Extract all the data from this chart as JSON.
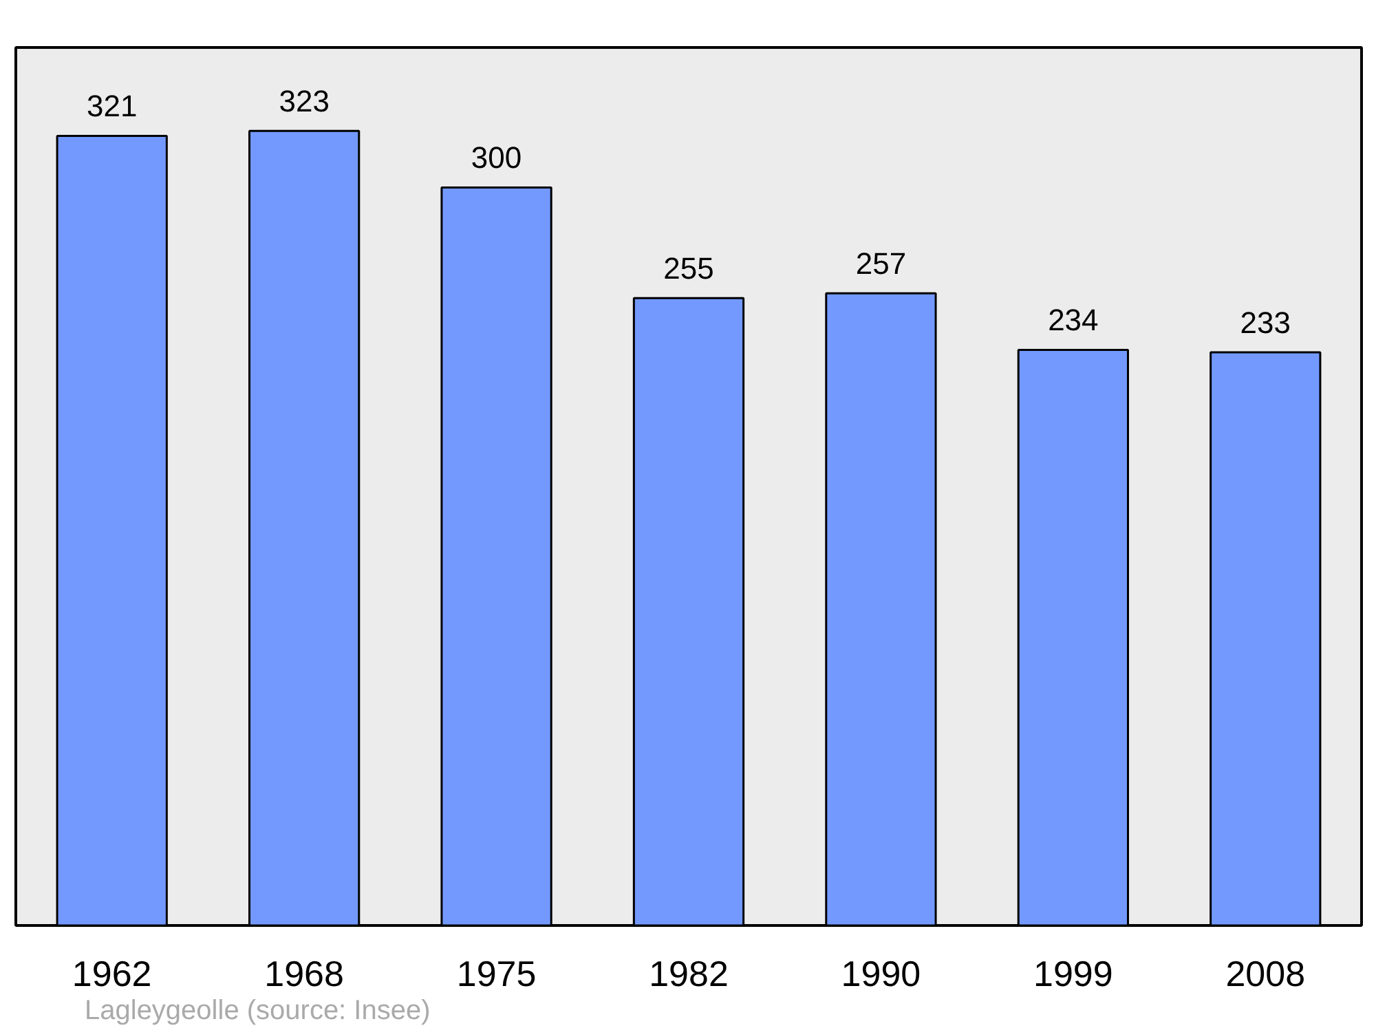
{
  "chart_data": {
    "type": "bar",
    "categories": [
      "1962",
      "1968",
      "1975",
      "1982",
      "1990",
      "1999",
      "2008"
    ],
    "values": [
      321,
      323,
      300,
      255,
      257,
      234,
      233
    ],
    "color": "#7399ff",
    "data_labels": true,
    "grid": false,
    "tick_labels": "x",
    "annotations": [
      "Lagleygeolle    (source: Insee)"
    ]
  }
}
